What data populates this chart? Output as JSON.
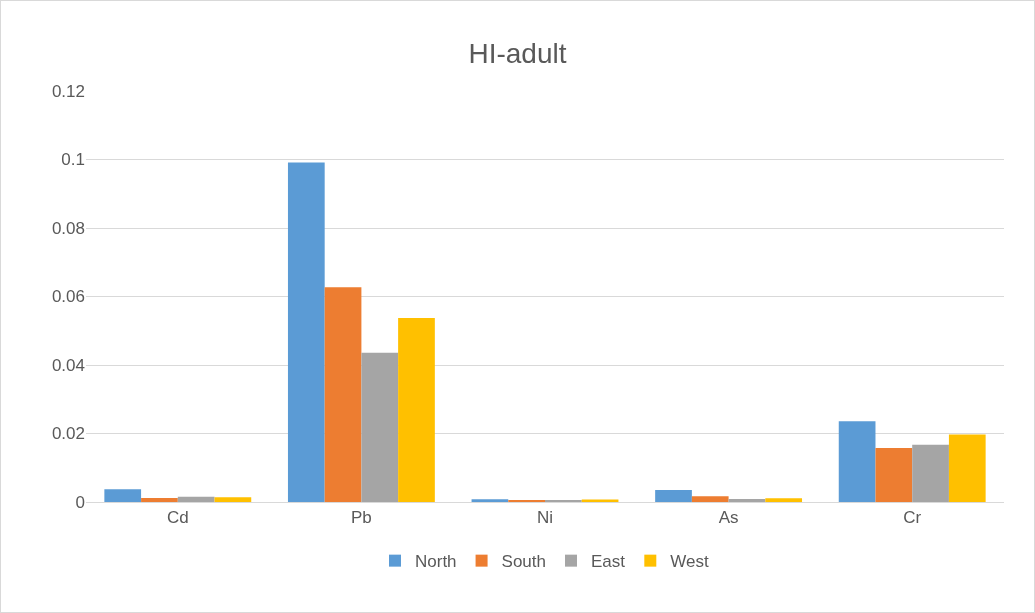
{
  "chart_data": {
    "type": "bar",
    "title": "HI-adult",
    "categories": [
      "Cd",
      "Pb",
      "Ni",
      "As",
      "Cr"
    ],
    "series": [
      {
        "name": "North",
        "color": "#5b9bd5",
        "values": [
          0.0037,
          0.0991,
          0.0008,
          0.0035,
          0.0236
        ]
      },
      {
        "name": "South",
        "color": "#ed7d31",
        "values": [
          0.0012,
          0.0627,
          0.0004,
          0.0017,
          0.0158
        ]
      },
      {
        "name": "East",
        "color": "#a5a5a5",
        "values": [
          0.0015,
          0.0436,
          0.0006,
          0.0009,
          0.0167
        ]
      },
      {
        "name": "West",
        "color": "#ffc000",
        "values": [
          0.0014,
          0.0537,
          0.0007,
          0.0011,
          0.0197
        ]
      }
    ],
    "ylim": [
      0,
      0.12
    ],
    "yticks": [
      0,
      0.02,
      0.04,
      0.06,
      0.08,
      0.1,
      0.12
    ],
    "grid": "y",
    "legend": "bottom"
  }
}
